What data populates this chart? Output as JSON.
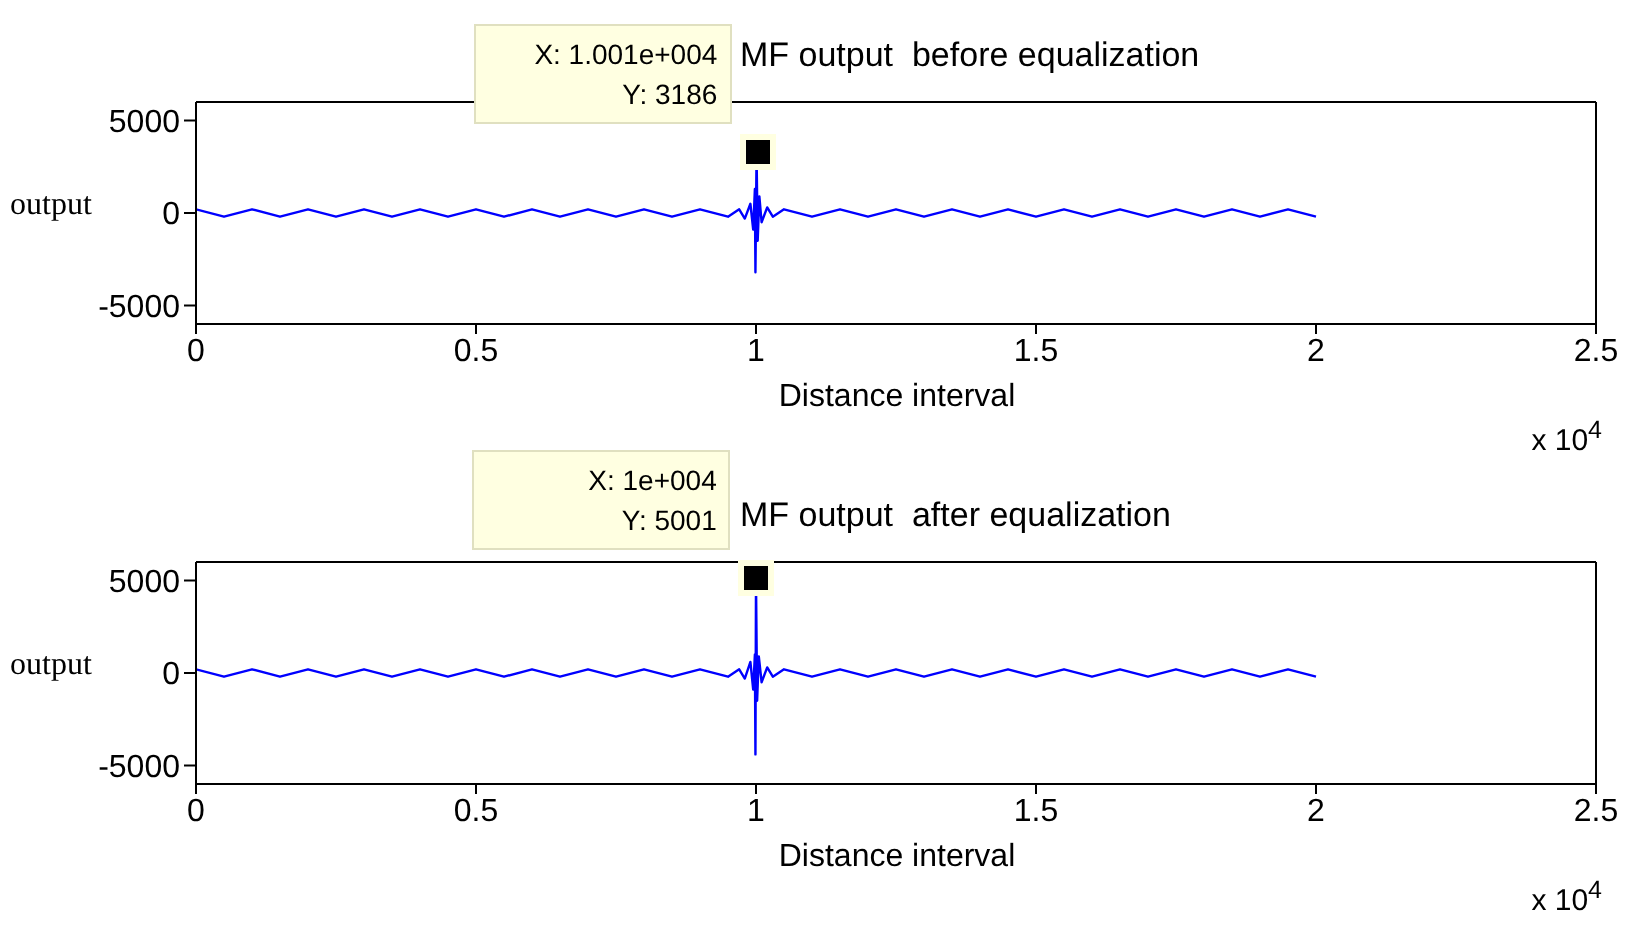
{
  "chart_data": [
    {
      "type": "line",
      "title": "MF output  before equalization",
      "xlabel": "Distance interval",
      "ylabel": "output",
      "color": "#0000ff",
      "x": [
        0,
        0.05,
        0.1,
        0.15,
        0.2,
        0.25,
        0.3,
        0.35,
        0.4,
        0.45,
        0.5,
        0.55,
        0.6,
        0.65,
        0.7,
        0.75,
        0.8,
        0.85,
        0.9,
        0.95,
        0.97,
        0.98,
        0.99,
        0.995,
        0.998,
        0.999,
        1.001,
        1.003,
        1.006,
        1.01,
        1.02,
        1.03,
        1.05,
        1.1,
        1.15,
        1.2,
        1.25,
        1.3,
        1.35,
        1.4,
        1.45,
        1.5,
        1.55,
        1.6,
        1.65,
        1.7,
        1.75,
        1.8,
        1.85,
        1.9,
        1.95,
        2
      ],
      "values": [
        200,
        -200,
        200,
        -200,
        200,
        -200,
        200,
        -200,
        200,
        -200,
        200,
        -200,
        200,
        -200,
        200,
        -200,
        200,
        -200,
        200,
        -200,
        200,
        -300,
        500,
        -900,
        1300,
        -3200,
        3186,
        -1500,
        900,
        -500,
        300,
        -200,
        200,
        -200,
        200,
        -200,
        200,
        -200,
        200,
        -200,
        200,
        -200,
        200,
        -200,
        200,
        -200,
        200,
        -200,
        200,
        -200,
        200,
        -200
      ],
      "xlim": [
        0,
        2.5
      ],
      "xticks": [
        0,
        0.5,
        1,
        1.5,
        2,
        2.5
      ],
      "ylim": [
        -6000,
        6000
      ],
      "yticks": [
        -5000,
        0,
        5000
      ],
      "grid": false,
      "legend": false,
      "annotations": [
        {
          "text": "X: 1.001e+004\nY: 3186",
          "x": 1.001,
          "y": 3186
        },
        "x 10$^{4}$"
      ]
    },
    {
      "type": "line",
      "title": "MF output  after equalization",
      "xlabel": "Distance interval",
      "ylabel": "output",
      "color": "#0000ff",
      "x": [
        0,
        0.05,
        0.1,
        0.15,
        0.2,
        0.25,
        0.3,
        0.35,
        0.4,
        0.45,
        0.5,
        0.55,
        0.6,
        0.65,
        0.7,
        0.75,
        0.8,
        0.85,
        0.9,
        0.95,
        0.97,
        0.98,
        0.99,
        0.995,
        0.998,
        0.999,
        1,
        1.002,
        1.005,
        1.01,
        1.02,
        1.03,
        1.05,
        1.1,
        1.15,
        1.2,
        1.25,
        1.3,
        1.35,
        1.4,
        1.45,
        1.5,
        1.55,
        1.6,
        1.65,
        1.7,
        1.75,
        1.8,
        1.85,
        1.9,
        1.95,
        2
      ],
      "values": [
        200,
        -200,
        200,
        -200,
        200,
        -200,
        200,
        -200,
        200,
        -200,
        200,
        -200,
        200,
        -200,
        200,
        -200,
        200,
        -200,
        200,
        -200,
        200,
        -300,
        600,
        -900,
        1000,
        -4400,
        5001,
        -1500,
        900,
        -500,
        300,
        -200,
        200,
        -200,
        200,
        -200,
        200,
        -200,
        200,
        -200,
        200,
        -200,
        200,
        -200,
        200,
        -200,
        200,
        -200,
        200,
        -200,
        200,
        -200
      ],
      "xlim": [
        0,
        2.5
      ],
      "xticks": [
        0,
        0.5,
        1,
        1.5,
        2,
        2.5
      ],
      "ylim": [
        -6000,
        6000
      ],
      "yticks": [
        -5000,
        0,
        5000
      ],
      "grid": false,
      "legend": false,
      "annotations": [
        {
          "text": "X: 1e+004\nY: 5001",
          "x": 1,
          "y": 5001
        },
        "x 10$^{4}$"
      ]
    }
  ]
}
